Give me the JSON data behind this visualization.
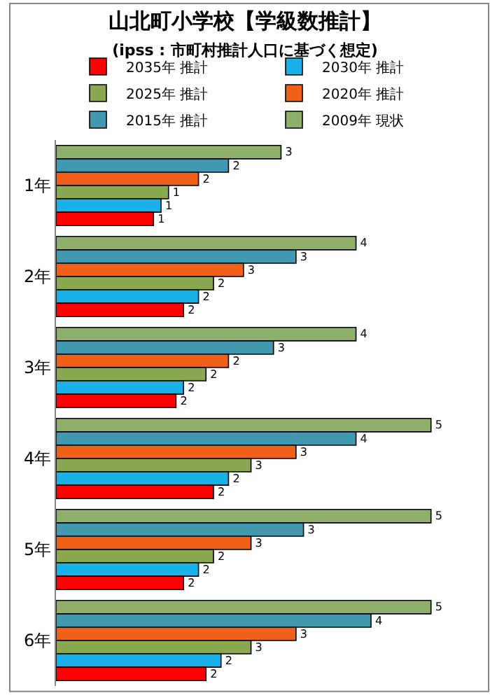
{
  "chart_data": {
    "type": "bar",
    "orientation": "horizontal",
    "title": "山北町小学校【学級数推計】",
    "subtitle": "(ipss : 市町村推計人口に基づく想定)",
    "categories": [
      "1年",
      "2年",
      "3年",
      "4年",
      "5年",
      "6年"
    ],
    "legend": "top",
    "series": [
      {
        "name": "2009年 現状",
        "color": "#8fb06a",
        "values": [
          3,
          4,
          4,
          5,
          5,
          5
        ],
        "value_labels": [
          "3",
          "4",
          "4",
          "5",
          "5",
          "5"
        ]
      },
      {
        "name": "2015年 推計",
        "color": "#4198af",
        "values": [
          2.3,
          3.2,
          2.9,
          4.0,
          3.3,
          4.2
        ],
        "value_labels": [
          "2",
          "3",
          "3",
          "4",
          "3",
          "4"
        ]
      },
      {
        "name": "2020年 推計",
        "color": "#f06018",
        "values": [
          1.9,
          2.5,
          2.3,
          3.2,
          2.6,
          3.2
        ],
        "value_labels": [
          "2",
          "3",
          "2",
          "3",
          "3",
          "3"
        ]
      },
      {
        "name": "2025年 推計",
        "color": "#8aa851",
        "values": [
          1.5,
          2.1,
          2.0,
          2.6,
          2.1,
          2.6
        ],
        "value_labels": [
          "1",
          "2",
          "2",
          "3",
          "2",
          "3"
        ]
      },
      {
        "name": "2030年 推計",
        "color": "#1ab0e8",
        "values": [
          1.4,
          1.9,
          1.7,
          2.3,
          1.9,
          2.2
        ],
        "value_labels": [
          "1",
          "2",
          "2",
          "2",
          "2",
          "2"
        ]
      },
      {
        "name": "2035年 推計",
        "color": "#ff0000",
        "values": [
          1.3,
          1.7,
          1.6,
          2.1,
          1.7,
          2.0
        ],
        "value_labels": [
          "1",
          "2",
          "2",
          "2",
          "2",
          "2"
        ]
      }
    ]
  }
}
